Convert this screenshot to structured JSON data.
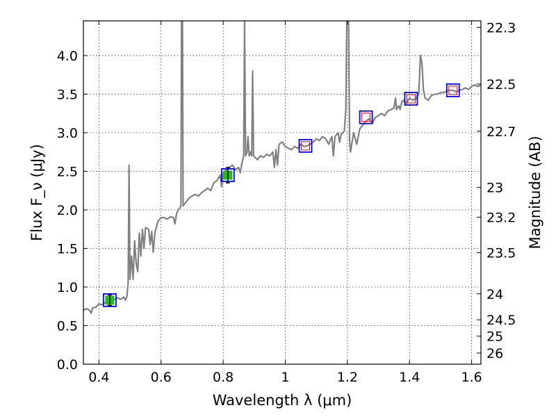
{
  "chart_data": {
    "type": "line",
    "xlabel": "Wavelength λ (μm)",
    "ylabel": "Flux F_ν (μJy)",
    "ylabel_right": "Magnitude (AB)",
    "xlim": [
      0.35,
      1.63
    ],
    "ylim": [
      0.0,
      4.45
    ],
    "grid": true,
    "x_ticks": [
      {
        "value": 0.4,
        "label": "0.4"
      },
      {
        "value": 0.6,
        "label": "0.6"
      },
      {
        "value": 0.8,
        "label": "0.8"
      },
      {
        "value": 1.0,
        "label": "1"
      },
      {
        "value": 1.2,
        "label": "1.2"
      },
      {
        "value": 1.4,
        "label": "1.4"
      },
      {
        "value": 1.6,
        "label": "1.6"
      }
    ],
    "y_ticks": [
      {
        "value": 0.0,
        "label": "0.0"
      },
      {
        "value": 0.5,
        "label": "0.5"
      },
      {
        "value": 1.0,
        "label": "1.0"
      },
      {
        "value": 1.5,
        "label": "1.5"
      },
      {
        "value": 2.0,
        "label": "2.0"
      },
      {
        "value": 2.5,
        "label": "2.5"
      },
      {
        "value": 3.0,
        "label": "3.0"
      },
      {
        "value": 3.5,
        "label": "3.5"
      },
      {
        "value": 4.0,
        "label": "4.0"
      }
    ],
    "mag_ticks": [
      {
        "mag": 22.3,
        "label": "22.3"
      },
      {
        "mag": 22.5,
        "label": "22.5"
      },
      {
        "mag": 22.7,
        "label": "22.7"
      },
      {
        "mag": 23.0,
        "label": "23"
      },
      {
        "mag": 23.2,
        "label": "23.2"
      },
      {
        "mag": 23.5,
        "label": "23.5"
      },
      {
        "mag": 24.0,
        "label": "24"
      },
      {
        "mag": 24.5,
        "label": "24.5"
      },
      {
        "mag": 25.0,
        "label": "25"
      },
      {
        "mag": 26.0,
        "label": "26"
      }
    ],
    "spectrum": {
      "color": "#808080",
      "points": [
        [
          0.35,
          0.7
        ],
        [
          0.36,
          0.72
        ],
        [
          0.37,
          0.7
        ],
        [
          0.375,
          0.66
        ],
        [
          0.38,
          0.73
        ],
        [
          0.39,
          0.74
        ],
        [
          0.4,
          0.78
        ],
        [
          0.41,
          0.77
        ],
        [
          0.42,
          0.8
        ],
        [
          0.43,
          0.82
        ],
        [
          0.44,
          0.83
        ],
        [
          0.45,
          0.84
        ],
        [
          0.46,
          0.86
        ],
        [
          0.47,
          0.84
        ],
        [
          0.48,
          0.87
        ],
        [
          0.485,
          0.83
        ],
        [
          0.49,
          0.88
        ],
        [
          0.494,
          1.05
        ],
        [
          0.497,
          2.58
        ],
        [
          0.5,
          1.1
        ],
        [
          0.505,
          1.4
        ],
        [
          0.51,
          1.1
        ],
        [
          0.515,
          1.6
        ],
        [
          0.52,
          1.3
        ],
        [
          0.525,
          1.2
        ],
        [
          0.53,
          1.7
        ],
        [
          0.535,
          1.4
        ],
        [
          0.54,
          1.75
        ],
        [
          0.545,
          1.5
        ],
        [
          0.55,
          1.77
        ],
        [
          0.56,
          1.75
        ],
        [
          0.565,
          1.55
        ],
        [
          0.57,
          1.72
        ],
        [
          0.575,
          1.45
        ],
        [
          0.58,
          1.7
        ],
        [
          0.59,
          1.85
        ],
        [
          0.6,
          1.9
        ],
        [
          0.61,
          1.9
        ],
        [
          0.62,
          1.88
        ],
        [
          0.63,
          1.91
        ],
        [
          0.64,
          1.9
        ],
        [
          0.645,
          1.82
        ],
        [
          0.65,
          1.95
        ],
        [
          0.655,
          2.0
        ],
        [
          0.66,
          2.02
        ],
        [
          0.664,
          2.05
        ],
        [
          0.666,
          4.45
        ],
        [
          0.669,
          4.45
        ],
        [
          0.671,
          2.05
        ],
        [
          0.68,
          2.1
        ],
        [
          0.69,
          2.15
        ],
        [
          0.7,
          2.18
        ],
        [
          0.71,
          2.2
        ],
        [
          0.72,
          2.18
        ],
        [
          0.73,
          2.22
        ],
        [
          0.74,
          2.25
        ],
        [
          0.75,
          2.28
        ],
        [
          0.76,
          2.25
        ],
        [
          0.77,
          2.35
        ],
        [
          0.78,
          2.38
        ],
        [
          0.79,
          2.45
        ],
        [
          0.795,
          2.3
        ],
        [
          0.8,
          2.48
        ],
        [
          0.81,
          2.52
        ],
        [
          0.82,
          2.55
        ],
        [
          0.83,
          2.58
        ],
        [
          0.84,
          2.52
        ],
        [
          0.85,
          2.55
        ],
        [
          0.855,
          2.48
        ],
        [
          0.86,
          2.6
        ],
        [
          0.866,
          2.7
        ],
        [
          0.869,
          4.45
        ],
        [
          0.872,
          2.7
        ],
        [
          0.877,
          2.75
        ],
        [
          0.88,
          2.95
        ],
        [
          0.884,
          2.7
        ],
        [
          0.888,
          2.75
        ],
        [
          0.892,
          2.7
        ],
        [
          0.895,
          3.8
        ],
        [
          0.898,
          2.7
        ],
        [
          0.91,
          2.65
        ],
        [
          0.92,
          2.7
        ],
        [
          0.93,
          2.68
        ],
        [
          0.94,
          2.72
        ],
        [
          0.95,
          2.7
        ],
        [
          0.96,
          2.75
        ],
        [
          0.965,
          2.55
        ],
        [
          0.97,
          2.78
        ],
        [
          0.975,
          2.58
        ],
        [
          0.98,
          2.85
        ],
        [
          0.99,
          2.88
        ],
        [
          1.0,
          2.82
        ],
        [
          1.01,
          2.8
        ],
        [
          1.02,
          2.78
        ],
        [
          1.03,
          2.82
        ],
        [
          1.04,
          2.8
        ],
        [
          1.05,
          2.85
        ],
        [
          1.06,
          2.82
        ],
        [
          1.07,
          2.83
        ],
        [
          1.08,
          2.85
        ],
        [
          1.09,
          2.88
        ],
        [
          1.1,
          2.92
        ],
        [
          1.11,
          2.9
        ],
        [
          1.12,
          2.95
        ],
        [
          1.13,
          2.92
        ],
        [
          1.14,
          2.85
        ],
        [
          1.15,
          2.95
        ],
        [
          1.155,
          2.7
        ],
        [
          1.16,
          2.95
        ],
        [
          1.17,
          3.0
        ],
        [
          1.175,
          2.88
        ],
        [
          1.18,
          2.98
        ],
        [
          1.19,
          3.02
        ],
        [
          1.195,
          3.3
        ],
        [
          1.198,
          4.45
        ],
        [
          1.204,
          4.45
        ],
        [
          1.207,
          2.9
        ],
        [
          1.21,
          2.75
        ],
        [
          1.22,
          3.0
        ],
        [
          1.23,
          2.85
        ],
        [
          1.24,
          3.05
        ],
        [
          1.25,
          3.1
        ],
        [
          1.26,
          3.15
        ],
        [
          1.27,
          3.18
        ],
        [
          1.28,
          3.12
        ],
        [
          1.29,
          3.2
        ],
        [
          1.3,
          3.22
        ],
        [
          1.31,
          3.25
        ],
        [
          1.32,
          3.22
        ],
        [
          1.33,
          3.28
        ],
        [
          1.34,
          3.3
        ],
        [
          1.35,
          3.32
        ],
        [
          1.355,
          3.45
        ],
        [
          1.358,
          3.3
        ],
        [
          1.365,
          3.35
        ],
        [
          1.37,
          3.3
        ],
        [
          1.375,
          3.4
        ],
        [
          1.38,
          3.42
        ],
        [
          1.39,
          3.38
        ],
        [
          1.4,
          3.45
        ],
        [
          1.41,
          3.42
        ],
        [
          1.42,
          3.44
        ],
        [
          1.43,
          3.5
        ],
        [
          1.435,
          4.0
        ],
        [
          1.44,
          3.9
        ],
        [
          1.445,
          3.55
        ],
        [
          1.45,
          3.45
        ],
        [
          1.46,
          3.42
        ],
        [
          1.47,
          3.48
        ],
        [
          1.48,
          3.5
        ],
        [
          1.49,
          3.5
        ],
        [
          1.5,
          3.52
        ],
        [
          1.51,
          3.52
        ],
        [
          1.52,
          3.54
        ],
        [
          1.53,
          3.55
        ],
        [
          1.54,
          3.55
        ],
        [
          1.55,
          3.53
        ],
        [
          1.56,
          3.55
        ],
        [
          1.57,
          3.56
        ],
        [
          1.58,
          3.58
        ],
        [
          1.59,
          3.56
        ],
        [
          1.6,
          3.6
        ],
        [
          1.61,
          3.62
        ],
        [
          1.62,
          3.6
        ],
        [
          1.63,
          3.62
        ]
      ]
    },
    "model_photometry": {
      "outer_color": "#0000ff",
      "inner_color": "#ff0000",
      "points": [
        {
          "x": 0.435,
          "y": 0.83
        },
        {
          "x": 0.815,
          "y": 2.45
        },
        {
          "x": 1.065,
          "y": 2.83
        },
        {
          "x": 1.26,
          "y": 3.2
        },
        {
          "x": 1.405,
          "y": 3.44
        },
        {
          "x": 1.54,
          "y": 3.55
        }
      ]
    },
    "observed_photometry": {
      "color": "#22bb22",
      "points": [
        {
          "x": 0.435,
          "y": 0.83,
          "err": 0.07
        },
        {
          "x": 0.815,
          "y": 2.45,
          "err": 0.1
        }
      ]
    }
  }
}
